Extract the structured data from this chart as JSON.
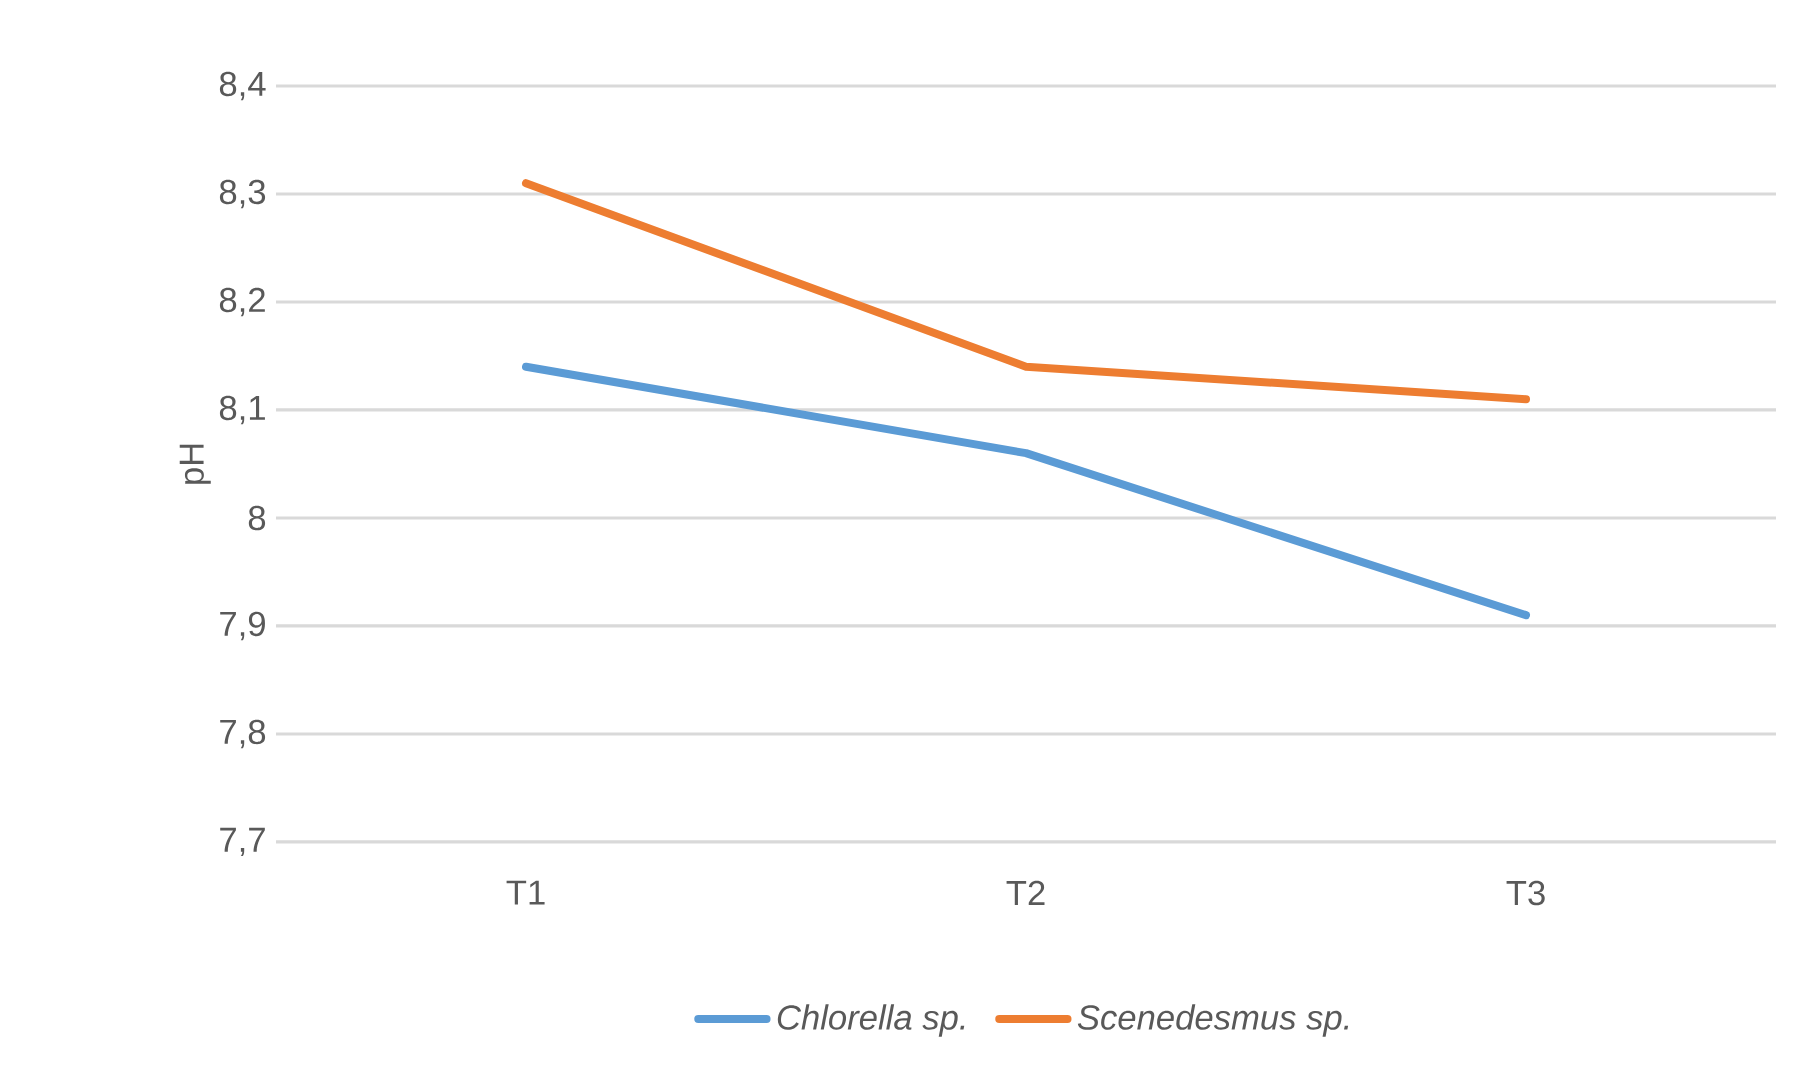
{
  "chart_data": {
    "type": "line",
    "ylabel": "pH",
    "categories": [
      "T1",
      "T2",
      "T3"
    ],
    "series": [
      {
        "name": "Chlorella sp.",
        "color": "#5b9bd5",
        "values": [
          8.14,
          8.06,
          7.91
        ]
      },
      {
        "name": "Scenedesmus sp.",
        "color": "#ed7d31",
        "values": [
          8.31,
          8.14,
          8.11
        ]
      }
    ],
    "ylim": [
      7.7,
      8.4
    ],
    "yticks": [
      {
        "value": 7.7,
        "label": "7,7"
      },
      {
        "value": 7.8,
        "label": "7,8"
      },
      {
        "value": 7.9,
        "label": "7,9"
      },
      8,
      {
        "value": 8.1,
        "label": "8,1"
      },
      {
        "value": 8.2,
        "label": "8,2"
      },
      {
        "value": 8.3,
        "label": "8,3"
      },
      {
        "value": 8.4,
        "label": "8,4"
      }
    ],
    "grid": "y",
    "legend": "bottom",
    "marker": "none",
    "line_style": "solid"
  }
}
